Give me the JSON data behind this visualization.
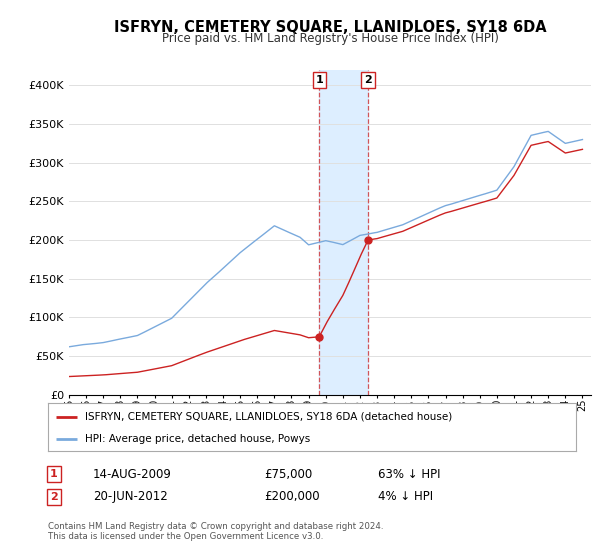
{
  "title": "ISFRYN, CEMETERY SQUARE, LLANIDLOES, SY18 6DA",
  "subtitle": "Price paid vs. HM Land Registry's House Price Index (HPI)",
  "ylim": [
    0,
    420000
  ],
  "yticks": [
    0,
    50000,
    100000,
    150000,
    200000,
    250000,
    300000,
    350000,
    400000
  ],
  "ytick_labels": [
    "£0",
    "£50K",
    "£100K",
    "£150K",
    "£200K",
    "£250K",
    "£300K",
    "£350K",
    "£400K"
  ],
  "hpi_color": "#7aaadd",
  "property_color": "#cc2222",
  "shading_color": "#ddeeff",
  "sale1_date": 2009.62,
  "sale1_price": 75000,
  "sale1_label": "14-AUG-2009",
  "sale1_amount": "£75,000",
  "sale1_hpi": "63% ↓ HPI",
  "sale2_date": 2012.47,
  "sale2_price": 200000,
  "sale2_label": "20-JUN-2012",
  "sale2_amount": "£200,000",
  "sale2_hpi": "4% ↓ HPI",
  "legend_property": "ISFRYN, CEMETERY SQUARE, LLANIDLOES, SY18 6DA (detached house)",
  "legend_hpi": "HPI: Average price, detached house, Powys",
  "footer": "Contains HM Land Registry data © Crown copyright and database right 2024.\nThis data is licensed under the Open Government Licence v3.0.",
  "background_color": "#ffffff",
  "grid_color": "#e0e0e0",
  "xlim_start": 1995,
  "xlim_end": 2025.5,
  "hpi_anchors_t": [
    1995,
    1997,
    1999,
    2001,
    2003,
    2005,
    2007,
    2008.5,
    2009,
    2010,
    2011,
    2012,
    2013,
    2014.5,
    2016,
    2017,
    2018.5,
    2020,
    2021,
    2022,
    2023,
    2024,
    2025
  ],
  "hpi_anchors_v": [
    62000,
    68000,
    78000,
    100000,
    145000,
    185000,
    220000,
    205000,
    195000,
    200000,
    195000,
    207000,
    210000,
    220000,
    235000,
    245000,
    255000,
    265000,
    295000,
    335000,
    340000,
    325000,
    330000
  ]
}
